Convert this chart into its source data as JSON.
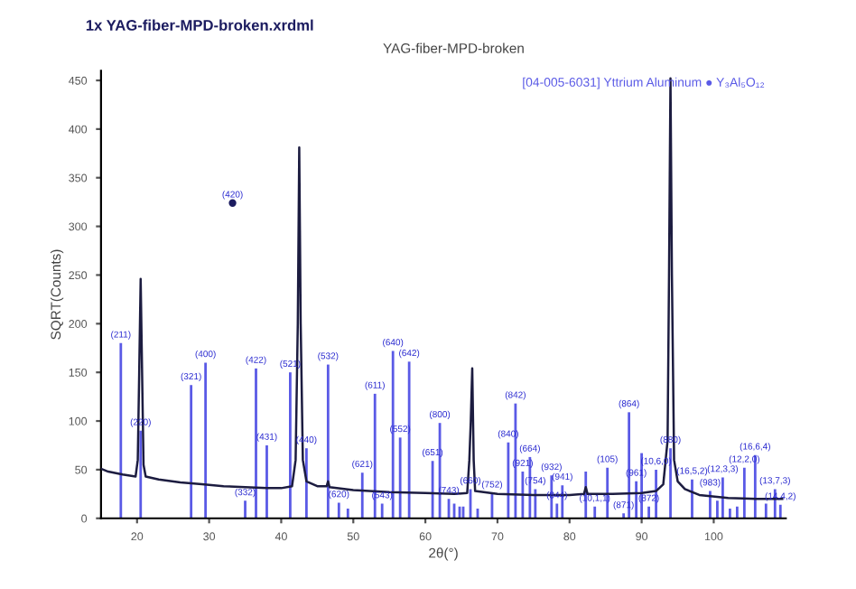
{
  "chart_data": {
    "type": "line",
    "title": "YAG-fiber-MPD-broken",
    "xlabel": "2θ(°)",
    "ylabel": "SQRT(Counts)",
    "xlim": [
      15,
      110
    ],
    "ylim": [
      0,
      460
    ],
    "xticks": [
      20,
      30,
      40,
      50,
      60,
      70,
      80,
      90,
      100
    ],
    "yticks": [
      0,
      50,
      100,
      150,
      200,
      250,
      300,
      350,
      400,
      450
    ],
    "grid": false,
    "legend": false,
    "marker": "none",
    "line_style": "solid",
    "series": [
      {
        "color": "#1c1c40",
        "x": [
          15,
          16,
          18,
          19.8,
          20.1,
          20.3,
          20.5,
          20.7,
          20.9,
          21.2,
          23,
          26,
          29,
          32,
          35,
          38,
          40,
          41.5,
          42,
          42.3,
          42.5,
          42.7,
          43,
          43.5,
          45,
          46.3,
          46.5,
          46.7,
          50,
          55,
          60,
          64,
          65.8,
          66.1,
          66.3,
          66.5,
          66.7,
          66.9,
          70,
          75,
          80,
          82,
          82.25,
          82.5,
          86,
          90,
          92,
          93,
          93.6,
          93.8,
          94,
          94.2,
          94.5,
          95,
          96,
          98,
          102,
          106,
          109.5
        ],
        "values": [
          51,
          48,
          45,
          43,
          60,
          150,
          246,
          150,
          55,
          43,
          40,
          37,
          35,
          33,
          32,
          31,
          31,
          33,
          60,
          200,
          381,
          200,
          60,
          38,
          33,
          33,
          38,
          32,
          29,
          27,
          26,
          25,
          26,
          60,
          100,
          154,
          60,
          28,
          25,
          24,
          24,
          25,
          32,
          25,
          25,
          26,
          28,
          35,
          80,
          250,
          452,
          250,
          60,
          38,
          30,
          24,
          21,
          20,
          20
        ]
      },
      {
        "type": "bar",
        "name": "[04-005-6031] Yttrium Aluminum ● Y₃Al₅O₁₂",
        "color": "#5a5ae6",
        "x": [
          17.75,
          20.5,
          27.5,
          29.5,
          35,
          36.5,
          38,
          41.25,
          43.5,
          46.5,
          48,
          49.25,
          51.25,
          53,
          54,
          55.5,
          56.5,
          57.75,
          61,
          62,
          63.25,
          64,
          64.75,
          65.25,
          66.25,
          67.25,
          69.25,
          71.5,
          72.5,
          73.5,
          74.5,
          75.25,
          77.5,
          78.25,
          79,
          82.25,
          83.5,
          85.25,
          87.5,
          88.25,
          89.25,
          90,
          91,
          92,
          94,
          97,
          99.5,
          100.5,
          101.25,
          102.25,
          103.25,
          104.25,
          105.75,
          107.25,
          108.5,
          109.25
        ],
        "values": [
          180,
          90,
          137,
          160,
          18,
          154,
          75,
          150,
          72,
          158,
          16,
          10,
          47,
          128,
          15,
          172,
          83,
          161,
          59,
          98,
          20,
          15,
          12,
          12,
          30,
          10,
          26,
          78,
          118,
          48,
          63,
          30,
          44,
          15,
          34,
          48,
          12,
          52,
          5,
          109,
          38,
          67,
          12,
          50,
          72,
          40,
          28,
          18,
          42,
          10,
          12,
          52,
          65,
          15,
          30,
          14
        ]
      },
      {
        "type": "scatter",
        "color": "#1c1c60",
        "x": [
          33.25
        ],
        "values": [
          324
        ]
      }
    ],
    "annotations": [
      "1x YAG-fiber-MPD-broken.xrdml",
      {
        "text": "(420)",
        "x": 33.25,
        "y": 324
      },
      {
        "text": "(211)",
        "x": 17.75,
        "y": 180
      },
      {
        "text": "(220)",
        "x": 20.5,
        "y": 90
      },
      {
        "text": "(321)",
        "x": 27.5,
        "y": 137
      },
      {
        "text": "(400)",
        "x": 29.5,
        "y": 160
      },
      {
        "text": "(332)",
        "x": 35,
        "y": 18
      },
      {
        "text": "(422)",
        "x": 36.5,
        "y": 154
      },
      {
        "text": "(431)",
        "x": 38,
        "y": 75
      },
      {
        "text": "(521)",
        "x": 41.25,
        "y": 150
      },
      {
        "text": "(440)",
        "x": 43.5,
        "y": 72
      },
      {
        "text": "(532)",
        "x": 46.5,
        "y": 158
      },
      {
        "text": "(620)",
        "x": 48,
        "y": 16
      },
      {
        "text": "(621)",
        "x": 51.25,
        "y": 47
      },
      {
        "text": "(611)",
        "x": 53,
        "y": 128
      },
      {
        "text": "(543)",
        "x": 54,
        "y": 15
      },
      {
        "text": "(640)",
        "x": 55.5,
        "y": 172
      },
      {
        "text": "(552)",
        "x": 56.5,
        "y": 83
      },
      {
        "text": "(642)",
        "x": 57.75,
        "y": 161
      },
      {
        "text": "(651)",
        "x": 61,
        "y": 59
      },
      {
        "text": "(800)",
        "x": 62,
        "y": 98
      },
      {
        "text": "(743)",
        "x": 63.25,
        "y": 20
      },
      {
        "text": "(660)",
        "x": 66.25,
        "y": 30
      },
      {
        "text": "(752)",
        "x": 69.25,
        "y": 26
      },
      {
        "text": "(840)",
        "x": 71.5,
        "y": 78
      },
      {
        "text": "(842)",
        "x": 72.5,
        "y": 118
      },
      {
        "text": "(921)",
        "x": 73.5,
        "y": 48
      },
      {
        "text": "(664)",
        "x": 74.5,
        "y": 63
      },
      {
        "text": "(754)",
        "x": 75.25,
        "y": 30
      },
      {
        "text": "(932)",
        "x": 77.5,
        "y": 44
      },
      {
        "text": "(844)",
        "x": 78.25,
        "y": 15
      },
      {
        "text": "(941)",
        "x": 79,
        "y": 34
      },
      {
        "text": "(10,1,1)",
        "x": 83.5,
        "y": 12
      },
      {
        "text": "(105)",
        "x": 85.25,
        "y": 52
      },
      {
        "text": "(871)",
        "x": 87.5,
        "y": 5
      },
      {
        "text": "(864)",
        "x": 88.25,
        "y": 109
      },
      {
        "text": "(961)",
        "x": 89.25,
        "y": 38
      },
      {
        "text": "(872)",
        "x": 91,
        "y": 12
      },
      {
        "text": "(10,6,0)",
        "x": 92,
        "y": 50
      },
      {
        "text": "(880)",
        "x": 94,
        "y": 72
      },
      {
        "text": "(16,5,2)",
        "x": 97,
        "y": 40
      },
      {
        "text": "(983)",
        "x": 99.5,
        "y": 28
      },
      {
        "text": "(12,3,3)",
        "x": 101.25,
        "y": 42
      },
      {
        "text": "(12,2,0)",
        "x": 104.25,
        "y": 52
      },
      {
        "text": "(16,6,4)",
        "x": 105.75,
        "y": 65
      },
      {
        "text": "(13,7,3)",
        "x": 108.5,
        "y": 30
      },
      {
        "text": "(14,4,2)",
        "x": 109.25,
        "y": 14
      }
    ]
  }
}
